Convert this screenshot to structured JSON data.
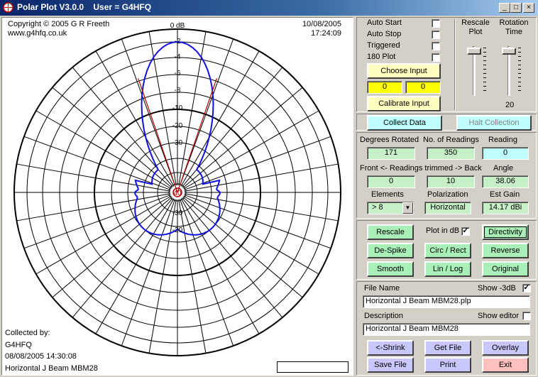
{
  "window": {
    "title": "Polar Plot V3.0.0    User = G4HFQ",
    "minimize": "_",
    "maximize": "□",
    "close": "×"
  },
  "plot": {
    "copyright": "Copyright © 2005 G R Freeth",
    "website": "www.g4hfq.co.uk",
    "date": "10/08/2005",
    "time": "17:24:09",
    "collected_by_label": "Collected by:",
    "collector": "G4HFQ",
    "collected_at": "08/08/2005 14:30:08",
    "description": "Horizontal J Beam MBM28",
    "center_label": "40",
    "ring_labels_top": [
      "0 dB",
      "-2",
      "-4",
      "-6",
      "-8",
      "-10",
      "-20",
      "-30"
    ],
    "ring_labels_bottom": [
      "-30",
      "-20"
    ],
    "line_color": "#1010e0",
    "marker_color": "#b00000"
  },
  "controls": {
    "auto_start": "Auto Start",
    "auto_stop": "Auto Stop",
    "triggered": "Triggered",
    "plot_180": "180 Plot",
    "choose_input": "Choose Input",
    "input_left": "0",
    "input_right": "0",
    "calibrate_input": "Calibrate Input",
    "rescale_plot": "Rescale Plot",
    "rotation_time": "Rotation Time",
    "rotation_time_value": "20"
  },
  "collection": {
    "collect_data": "Collect Data",
    "halt_collection": "Halt Collection"
  },
  "readings": {
    "degrees_rotated_label": "Degrees Rotated",
    "degrees_rotated": "171",
    "num_readings_label": "No. of Readings",
    "num_readings": "350",
    "reading_label": "Reading",
    "reading": "0",
    "trimmed_label": "Front <- Readings trimmed -> Back",
    "trim_front": "0",
    "trim_back": "10",
    "angle_label": "Angle",
    "angle": "38.06",
    "elements_label": "Elements",
    "elements": "> 8",
    "polarization_label": "Polarization",
    "polarization": "Horizontal",
    "est_gain_label": "Est Gain",
    "est_gain": "14.17 dBi"
  },
  "actions": {
    "rescale": "Rescale",
    "plot_in_db": "Plot in dB",
    "directivity": "Directivity",
    "despike": "De-Spike",
    "circ_rect": "Circ / Rect",
    "reverse": "Reverse",
    "smooth": "Smooth",
    "lin_log": "Lin / Log",
    "original": "Original"
  },
  "file": {
    "file_name_label": "File Name",
    "show_3db_label": "Show -3dB",
    "file_name": "Horizontal J Beam MBM28.plp",
    "description_label": "Description",
    "show_editor_label": "Show editor",
    "description": "Horizontal J Beam MBM28",
    "shrink": "<-Shrink",
    "get_file": "Get File",
    "overlay": "Overlay",
    "save_file": "Save File",
    "print": "Print",
    "exit": "Exit"
  }
}
